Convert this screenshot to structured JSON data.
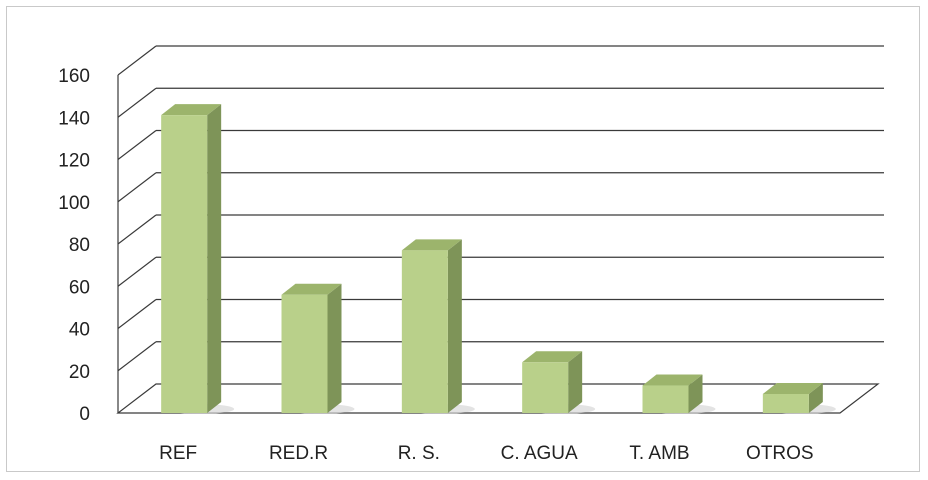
{
  "chart_data": {
    "type": "bar",
    "style": "3d-column",
    "title": "",
    "xlabel": "",
    "ylabel": "",
    "categories": [
      "REF",
      "RED.R",
      "R. S.",
      "C. AGUA",
      "T. AMB",
      "OTROS"
    ],
    "values": [
      141,
      56,
      77,
      24,
      13,
      9
    ],
    "ylim": [
      0,
      160
    ],
    "yticks": [
      0,
      20,
      40,
      60,
      80,
      100,
      120,
      140,
      160
    ],
    "grid": true,
    "legend": "none",
    "colors": {
      "bar_front": "#b9d08a",
      "bar_side": "#7e9458",
      "bar_top": "#9cb46c",
      "gridline": "#3a3a3a",
      "frame": "#c9c9c9"
    }
  }
}
